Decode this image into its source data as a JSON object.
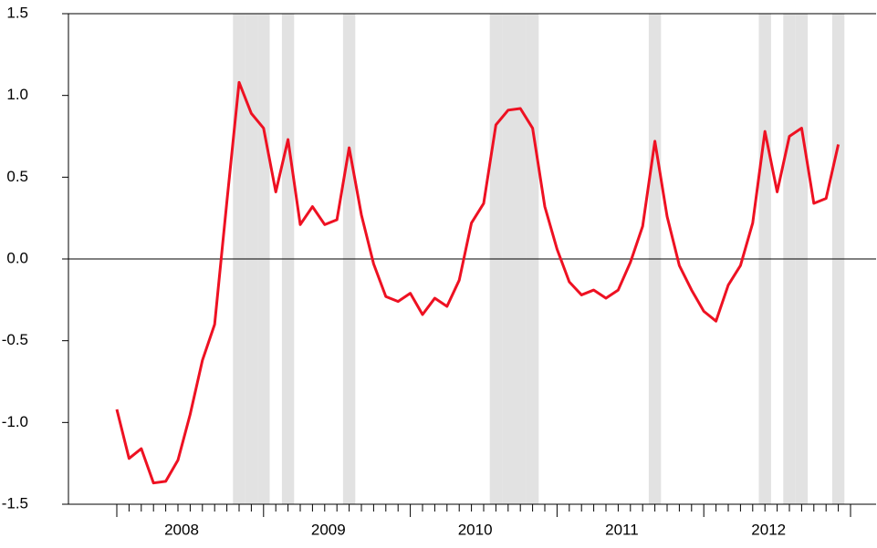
{
  "chart_data": {
    "type": "line",
    "categories": [
      null,
      null,
      null,
      null,
      null,
      "2008",
      null,
      null,
      null,
      null,
      null,
      null,
      null,
      null,
      null,
      null,
      null,
      "2009",
      null,
      null,
      null,
      null,
      null,
      null,
      null,
      null,
      null,
      null,
      null,
      "2010",
      null,
      null,
      null,
      null,
      null,
      null,
      null,
      null,
      null,
      null,
      null,
      "2011",
      null,
      null,
      null,
      null,
      null,
      null,
      null,
      null,
      null,
      null,
      null,
      "2012",
      null,
      null,
      null,
      null,
      null,
      null
    ],
    "values": [
      -0.92,
      -1.22,
      -1.16,
      -1.37,
      -1.36,
      -1.23,
      -0.95,
      -0.62,
      -0.4,
      0.35,
      1.08,
      0.89,
      0.8,
      0.41,
      0.73,
      0.21,
      0.32,
      0.21,
      0.24,
      0.68,
      0.27,
      -0.03,
      -0.23,
      -0.26,
      -0.21,
      -0.34,
      -0.24,
      -0.29,
      -0.13,
      0.22,
      0.34,
      0.82,
      0.91,
      0.92,
      0.8,
      0.32,
      0.06,
      -0.14,
      -0.22,
      -0.19,
      -0.24,
      -0.19,
      -0.02,
      0.2,
      0.72,
      0.26,
      -0.04,
      -0.19,
      -0.32,
      -0.38,
      -0.16,
      -0.04,
      0.22,
      0.78,
      0.41,
      0.75,
      0.8,
      0.34,
      0.37,
      0.7
    ],
    "color": "#ee1122",
    "shaded": [
      10,
      11,
      12,
      14,
      19,
      31,
      32,
      33,
      34,
      44,
      53,
      55,
      56,
      59
    ],
    "shade_color": "#e2e2e2",
    "ylim": [
      -1.5,
      1.5
    ],
    "yticks": [
      1.5,
      {
        "value": 1,
        "label": "1.0"
      },
      0.5,
      {
        "value": 0,
        "label": "0.0"
      },
      -0.5,
      {
        "value": -1,
        "label": "-1.0"
      },
      -1.5
    ],
    "zero_line": true
  }
}
